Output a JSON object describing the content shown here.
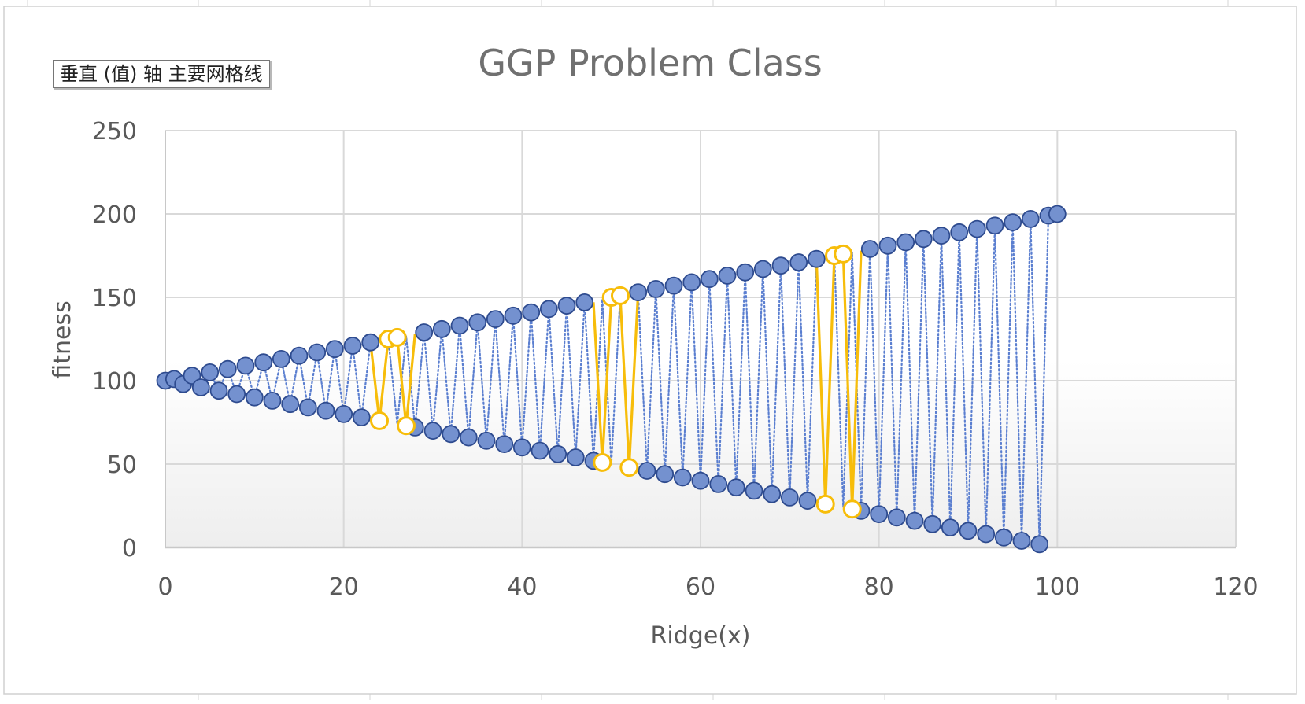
{
  "tooltip": "垂直 (值) 轴 主要网格线",
  "chart_data": {
    "type": "scatter",
    "title": "GGP Problem Class",
    "xlabel": "Ridge(x)",
    "ylabel": "fitness",
    "xlim": [
      0,
      120
    ],
    "ylim": [
      0,
      250
    ],
    "x_ticks": [
      "0",
      "20",
      "40",
      "60",
      "80",
      "100",
      "120"
    ],
    "y_ticks": [
      "0",
      "50",
      "100",
      "150",
      "200",
      "250"
    ],
    "grid": true,
    "legend": "none",
    "colors": {
      "main_fill": "#7491cf",
      "main_edge": "#2e4b8f",
      "main_line": "#5b7fd0",
      "highlight": "#f7bd0a",
      "grid": "#d9d9d9",
      "axis": "#c8c8c8",
      "text": "#595959",
      "title": "#707070"
    },
    "series": [
      {
        "style": "dotted-line",
        "x": [
          0,
          1,
          2,
          3,
          4,
          5,
          6,
          7,
          8,
          9,
          10,
          11,
          12,
          13,
          14,
          15,
          16,
          17,
          18,
          19,
          20,
          21,
          22,
          23,
          24,
          25,
          26,
          27,
          28,
          29,
          30,
          31,
          32,
          33,
          34,
          35,
          36,
          37,
          38,
          39,
          40,
          41,
          42,
          43,
          44,
          45,
          46,
          47,
          48,
          49,
          50,
          51,
          52,
          53,
          54,
          55,
          56,
          57,
          58,
          59,
          60,
          61,
          62,
          63,
          64,
          65,
          66,
          67,
          68,
          69,
          70,
          71,
          72,
          73,
          74,
          75,
          76,
          77,
          78,
          79,
          80,
          81,
          82,
          83,
          84,
          85,
          86,
          87,
          88,
          89,
          90,
          91,
          92,
          93,
          94,
          95,
          96,
          97,
          98,
          99,
          100
        ],
        "y": [
          100,
          101,
          98,
          103,
          96,
          105,
          94,
          107,
          92,
          109,
          90,
          111,
          88,
          113,
          86,
          115,
          84,
          117,
          82,
          119,
          80,
          121,
          78,
          123,
          76,
          125,
          74,
          127,
          72,
          129,
          70,
          131,
          68,
          133,
          66,
          135,
          64,
          137,
          62,
          139,
          60,
          141,
          58,
          143,
          56,
          145,
          54,
          147,
          52,
          149,
          50,
          151,
          48,
          153,
          46,
          155,
          44,
          157,
          42,
          159,
          40,
          161,
          38,
          163,
          36,
          165,
          34,
          167,
          32,
          169,
          30,
          171,
          28,
          173,
          26,
          175,
          24,
          177,
          22,
          179,
          20,
          181,
          18,
          183,
          16,
          185,
          14,
          187,
          12,
          189,
          10,
          191,
          8,
          193,
          6,
          195,
          4,
          197,
          2,
          199,
          200
        ]
      },
      {
        "style": "solid-line-hollow-markers",
        "segments": [
          {
            "x": [
              23,
              24,
              25,
              26,
              27,
              28
            ],
            "y": [
              123,
              76,
              125,
              126,
              73,
              128
            ]
          },
          {
            "x": [
              48,
              49,
              50,
              51,
              52,
              53
            ],
            "y": [
              147,
              51,
              150,
              151,
              48,
              153
            ]
          },
          {
            "x": [
              73,
              74,
              75,
              76,
              77,
              78
            ],
            "y": [
              173,
              26,
              175,
              176,
              23,
              178
            ]
          }
        ],
        "markers": {
          "x": [
            24,
            25,
            26,
            27,
            49,
            50,
            51,
            52,
            74,
            75,
            76,
            77
          ],
          "y": [
            76,
            125,
            126,
            73,
            51,
            150,
            151,
            48,
            26,
            175,
            176,
            23
          ]
        }
      }
    ]
  }
}
